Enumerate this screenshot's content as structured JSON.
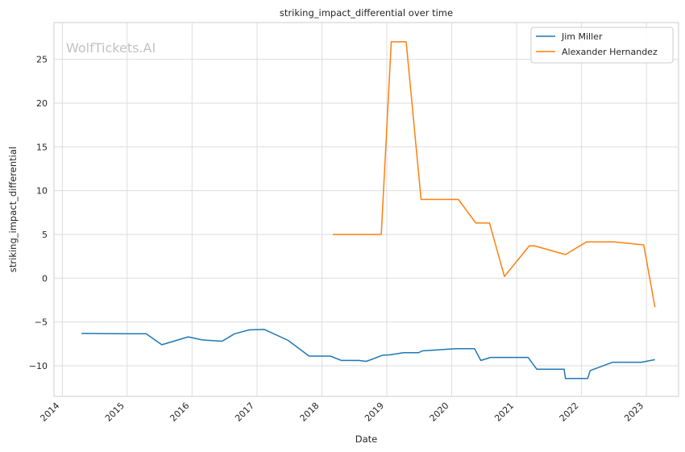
{
  "chart_data": {
    "type": "line",
    "title": "striking_impact_differential over time",
    "xlabel": "Date",
    "ylabel": "striking_impact_differential",
    "watermark": "WolfTickets.AI",
    "xlim": [
      "2013-11-15",
      "2023-07-01"
    ],
    "ylim": [
      -13.5,
      29.2
    ],
    "x_ticks": [
      "2014",
      "2015",
      "2016",
      "2017",
      "2018",
      "2019",
      "2020",
      "2021",
      "2022",
      "2023"
    ],
    "y_ticks": [
      -10,
      -5,
      0,
      5,
      10,
      15,
      20,
      25
    ],
    "grid": true,
    "legend_position": "top-right",
    "colors": {
      "Jim Miller": "#1f77b4",
      "Alexander Hernandez": "#ff7f0e"
    },
    "series": [
      {
        "name": "Jim Miller",
        "points": [
          [
            "2014-04-19",
            -6.3
          ],
          [
            "2015-01-20",
            -6.35
          ],
          [
            "2015-04-18",
            -6.35
          ],
          [
            "2015-07-15",
            -7.6
          ],
          [
            "2015-12-10",
            -6.7
          ],
          [
            "2016-02-27",
            -7.05
          ],
          [
            "2016-06-18",
            -7.2
          ],
          [
            "2016-08-27",
            -6.35
          ],
          [
            "2016-11-19",
            -5.9
          ],
          [
            "2017-02-11",
            -5.85
          ],
          [
            "2017-06-25",
            -7.1
          ],
          [
            "2017-10-21",
            -8.9
          ],
          [
            "2018-02-18",
            -8.9
          ],
          [
            "2018-04-21",
            -9.4
          ],
          [
            "2018-07-28",
            -9.4
          ],
          [
            "2018-09-08",
            -9.5
          ],
          [
            "2018-12-08",
            -8.8
          ],
          [
            "2019-01-19",
            -8.75
          ],
          [
            "2019-04-06",
            -8.5
          ],
          [
            "2019-06-29",
            -8.5
          ],
          [
            "2019-07-20",
            -8.3
          ],
          [
            "2020-01-25",
            -8.05
          ],
          [
            "2020-05-09",
            -8.05
          ],
          [
            "2020-06-13",
            -9.4
          ],
          [
            "2020-08-08",
            -9.05
          ],
          [
            "2021-03-06",
            -9.05
          ],
          [
            "2021-04-24",
            -10.4
          ],
          [
            "2021-09-25",
            -10.4
          ],
          [
            "2021-10-02",
            -11.45
          ],
          [
            "2022-02-05",
            -11.45
          ],
          [
            "2022-02-19",
            -10.55
          ],
          [
            "2022-06-25",
            -9.6
          ],
          [
            "2022-12-03",
            -9.6
          ],
          [
            "2023-02-18",
            -9.3
          ]
        ]
      },
      {
        "name": "Alexander Hernandez",
        "points": [
          [
            "2018-03-03",
            5.0
          ],
          [
            "2018-12-01",
            5.0
          ],
          [
            "2019-01-26",
            27.0
          ],
          [
            "2019-04-20",
            27.0
          ],
          [
            "2019-07-13",
            9.0
          ],
          [
            "2020-02-08",
            9.0
          ],
          [
            "2020-05-16",
            6.3
          ],
          [
            "2020-08-01",
            6.3
          ],
          [
            "2020-10-24",
            0.2
          ],
          [
            "2021-03-13",
            3.7
          ],
          [
            "2021-04-10",
            3.7
          ],
          [
            "2021-06-19",
            3.3
          ],
          [
            "2021-10-02",
            2.7
          ],
          [
            "2022-01-29",
            4.15
          ],
          [
            "2022-07-02",
            4.15
          ],
          [
            "2022-12-17",
            3.8
          ],
          [
            "2023-02-18",
            -3.3
          ]
        ]
      }
    ]
  }
}
